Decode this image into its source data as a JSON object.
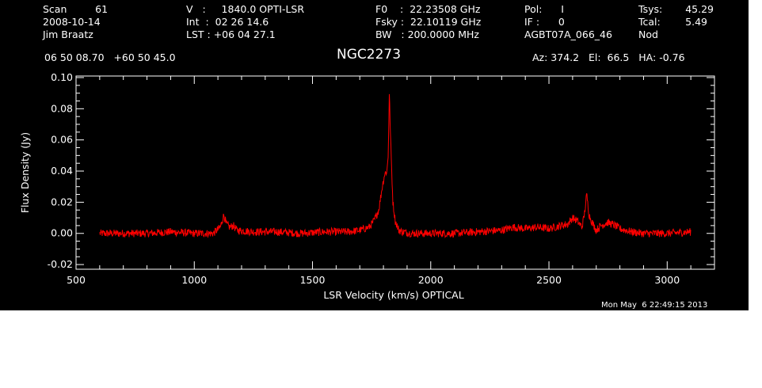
{
  "header": {
    "col1": [
      "Scan         61",
      "2008-10-14",
      "Jim Braatz"
    ],
    "col2": [
      "V   :     1840.0 OPTI-LSR",
      "Int  :  02 26 14.6",
      "LST : +06 04 27.1"
    ],
    "col3": [
      "F0    :  22.23508 GHz",
      "Fsky :  22.10119 GHz",
      "BW   : 200.0000 MHz"
    ],
    "col4": [
      "Pol:      I",
      "IF :      0",
      "AGBT07A_066_46"
    ],
    "col5": [
      "Tsys:",
      "Tcal:",
      "Nod"
    ],
    "col6": [
      "45.29",
      "5.49",
      ""
    ],
    "coords": "06 50 08.70   +60 50 45.0",
    "title": "NGC2273",
    "az_el_ha": "Az: 374.2   El:  66.5   HA: -0.76",
    "timestamp": "Mon May  6 22:49:15 2013"
  },
  "colors": {
    "background": "#000000",
    "axes": "#ffffff",
    "trace": "#ff0000"
  },
  "chart_data": {
    "type": "line",
    "title": "NGC2273",
    "xlabel": "LSR Velocity (km/s) OPTICAL",
    "ylabel": "Flux Density (Jy)",
    "xlim": [
      500,
      3200
    ],
    "ylim": [
      -0.023,
      0.101
    ],
    "xticks": [
      500,
      1000,
      1500,
      2000,
      2500,
      3000
    ],
    "xtick_labels": [
      "500",
      "1000",
      "1500",
      "2000",
      "2500",
      "3000"
    ],
    "yticks": [
      -0.02,
      0.0,
      0.02,
      0.04,
      0.06,
      0.08,
      0.1
    ],
    "ytick_labels": [
      "-0.02",
      "0.00",
      "0.02",
      "0.04",
      "0.06",
      "0.08",
      "0.10"
    ],
    "grid": false,
    "series": [
      {
        "color": "#ff0000",
        "x": [
          600,
          700,
          800,
          900,
          1000,
          1080,
          1110,
          1125,
          1135,
          1150,
          1165,
          1180,
          1250,
          1350,
          1450,
          1550,
          1650,
          1700,
          1740,
          1760,
          1780,
          1795,
          1805,
          1815,
          1820,
          1825,
          1830,
          1835,
          1840,
          1850,
          1865,
          1880,
          1920,
          2000,
          2100,
          2200,
          2300,
          2350,
          2400,
          2450,
          2500,
          2550,
          2580,
          2600,
          2620,
          2640,
          2650,
          2660,
          2670,
          2680,
          2700,
          2720,
          2750,
          2780,
          2800,
          2850,
          2900,
          3000,
          3100
        ],
        "y": [
          0.0,
          0.0,
          0.0,
          0.001,
          0.0,
          0.0,
          0.004,
          0.012,
          0.006,
          0.004,
          0.005,
          0.002,
          0.001,
          0.001,
          0.0,
          0.001,
          0.001,
          0.002,
          0.004,
          0.008,
          0.015,
          0.03,
          0.038,
          0.04,
          0.05,
          0.09,
          0.062,
          0.04,
          0.02,
          0.008,
          0.002,
          0.001,
          0.0,
          0.0,
          0.0,
          0.001,
          0.002,
          0.004,
          0.003,
          0.004,
          0.003,
          0.005,
          0.006,
          0.01,
          0.008,
          0.004,
          0.012,
          0.025,
          0.012,
          0.008,
          0.002,
          0.005,
          0.007,
          0.005,
          0.003,
          0.001,
          0.0,
          0.0,
          0.001
        ]
      }
    ]
  }
}
